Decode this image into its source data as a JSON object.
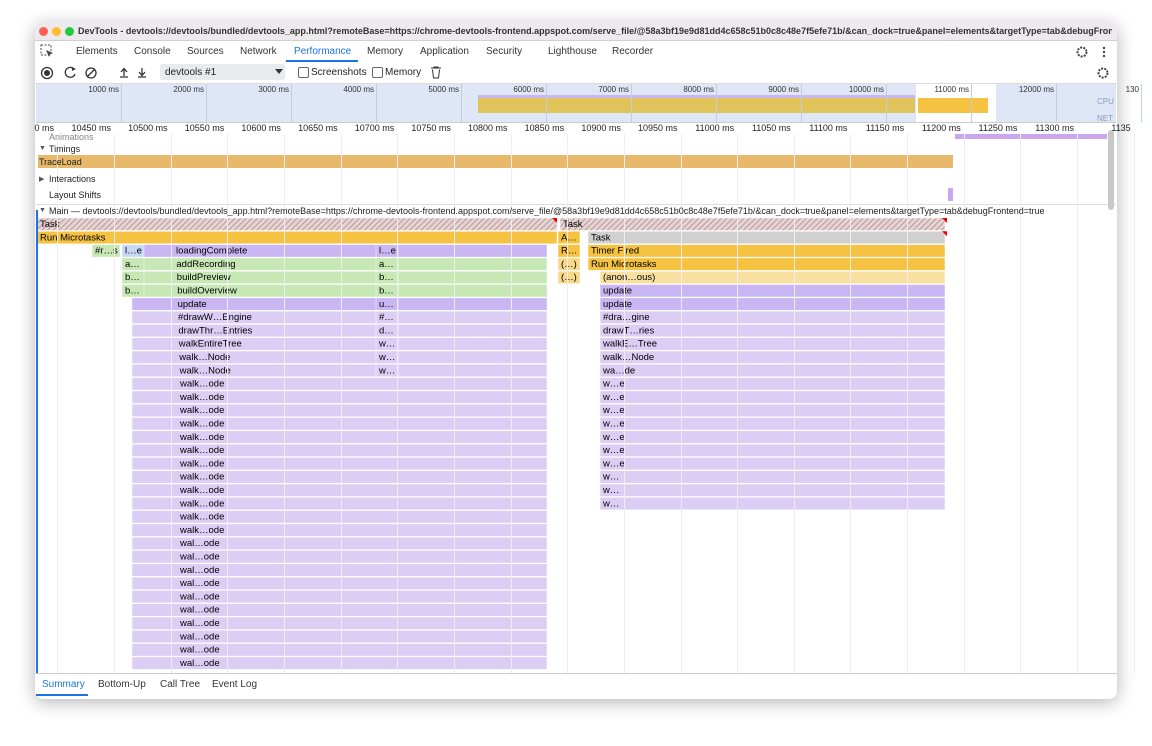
{
  "window": {
    "title": "DevTools - devtools://devtools/bundled/devtools_app.html?remoteBase=https://chrome-devtools-frontend.appspot.com/serve_file/@58a3bf19e9d81dd4c658c51b0c8c48e7f5efe71b/&can_dock=true&panel=elements&targetType=tab&debugFrontend=true"
  },
  "tabs": [
    "Elements",
    "Console",
    "Sources",
    "Network",
    "Performance",
    "Memory",
    "Application",
    "Security",
    "Lighthouse",
    "Recorder"
  ],
  "toolbar": {
    "target": "devtools #1",
    "checkboxes": [
      "Screenshots",
      "Memory"
    ]
  },
  "overview": {
    "ticks": [
      "1000 ms",
      "2000 ms",
      "3000 ms",
      "4000 ms",
      "5000 ms",
      "6000 ms",
      "7000 ms",
      "8000 ms",
      "9000 ms",
      "10000 ms",
      "11000 ms",
      "12000 ms",
      "130"
    ],
    "lanes": [
      "CPU",
      "NET"
    ]
  },
  "ruler": {
    "ticks": [
      "0 ms",
      "10450 ms",
      "10500 ms",
      "10550 ms",
      "10600 ms",
      "10650 ms",
      "10700 ms",
      "10750 ms",
      "10800 ms",
      "10850 ms",
      "10900 ms",
      "10950 ms",
      "11000 ms",
      "11050 ms",
      "11100 ms",
      "11150 ms",
      "11200 ms",
      "11250 ms",
      "11300 ms",
      "1135"
    ]
  },
  "tracks": {
    "animations": "Animations",
    "timings": "Timings",
    "trace_load": "TraceLoad",
    "interactions": "Interactions",
    "layout_shifts": "Layout Shifts",
    "main": "Main — devtools://devtools/bundled/devtools_app.html?remoteBase=https://chrome-devtools-frontend.appspot.com/serve_file/@58a3bf19e9d81dd4c658c51b0c8c48e7f5efe71b/&can_dock=true&panel=elements&targetType=tab&debugFrontend=true"
  },
  "flame": {
    "columns": [
      {
        "labels": [
          "Task",
          "Run Microtasks"
        ]
      },
      {
        "labels": [
          "Task"
        ]
      },
      {
        "labels": [
          "A…",
          "R…",
          "(…)",
          "(…)"
        ]
      },
      {
        "labels": [
          "Task",
          "Timer Fired",
          "Run Microtasks"
        ]
      },
      {
        "labels": [
          "(anon…ous)",
          "update",
          "update",
          "#dra…gine",
          "drawT…ries",
          "walkE…Tree",
          "walk…Node",
          "wa…de",
          "w…e",
          "w…e",
          "w…e",
          "w…e",
          "w…e",
          "w…e",
          "w…e",
          "w…",
          "w…",
          "w…"
        ]
      },
      {
        "labels": [
          "loadingComplete",
          "addRecording",
          "buildPreview",
          "buildOverview",
          "update",
          "#drawW…Engine",
          "drawThr…Entries",
          "walkEntireTree",
          "walk…Node",
          "walk…Node",
          "walk…ode",
          "walk…ode",
          "walk…ode",
          "walk…ode",
          "walk…ode",
          "walk…ode",
          "walk…ode",
          "walk…ode",
          "walk…ode",
          "walk…ode",
          "walk…ode",
          "walk…ode",
          "wal…ode",
          "wal…ode",
          "wal…ode",
          "wal…ode",
          "wal…ode",
          "wal…ode",
          "wal…ode",
          "wal…ode",
          "wal…ode",
          "wal…ode"
        ]
      },
      {
        "labels": [
          "#r…s"
        ]
      },
      {
        "labels": [
          "l…e",
          "a…",
          "b…",
          "b…"
        ]
      },
      {
        "labels": [
          "l…e",
          "a…",
          "b…",
          "b…",
          "u…",
          "#…",
          "d…",
          "w…",
          "w…",
          "w…"
        ]
      }
    ]
  },
  "bottom_tabs": [
    "Summary",
    "Bottom-Up",
    "Call Tree",
    "Event Log"
  ]
}
